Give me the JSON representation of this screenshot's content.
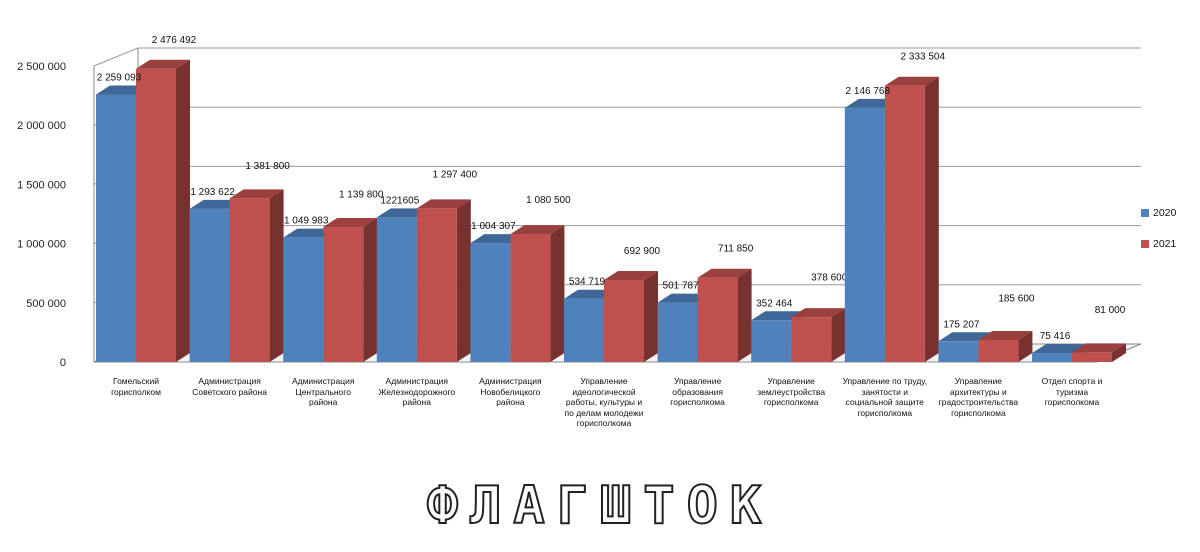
{
  "chart_data": {
    "type": "bar",
    "style": "3d-clustered-column",
    "ylim": [
      0,
      2500000
    ],
    "yticks": [
      {
        "value": 0,
        "label": "0"
      },
      {
        "value": 500000,
        "label": "500 000"
      },
      {
        "value": 1000000,
        "label": "1 000 000"
      },
      {
        "value": 1500000,
        "label": "1 500 000"
      },
      {
        "value": 2000000,
        "label": "2 000 000"
      },
      {
        "value": 2500000,
        "label": "2 500 000"
      }
    ],
    "grid": true,
    "legend_position": "right",
    "categories": [
      "Гомельский горисполком",
      "Администрация Советского района",
      "Администрация Центрального района",
      "Администрация Железнодорожного района",
      "Администрация Новобелицкого района",
      "Управление идеологической работы, культуры и по делам молодежи горисполкома",
      "Управление образования горисполкома",
      "Управление землеустройства горисполкома",
      "Управление по труду, занятости и социальной защите горисполкома",
      "Управление архитектуры и градостроительства горисполкома",
      "Отдел спорта и туризма горисполкома"
    ],
    "series": [
      {
        "name": "2020",
        "color": "#4f81bd",
        "values": [
          2259093,
          1293622,
          1049983,
          1221605,
          1004307,
          534719,
          501787,
          352464,
          2146768,
          175207,
          75416
        ],
        "labels": [
          "2 259 093",
          "1 293 622",
          "1 049 983",
          "1221605",
          "1 004 307",
          "534 719",
          "501 787",
          "352 464",
          "2 146 768",
          "175 207",
          "75 416"
        ]
      },
      {
        "name": "2021",
        "color": "#c0504d",
        "values": [
          2476492,
          1381800,
          1139800,
          1297400,
          1080500,
          692900,
          711850,
          378600,
          2333504,
          185600,
          81000
        ],
        "labels": [
          "2 476 492",
          "1 381 800",
          "1 139 800",
          "1 297 400",
          "1 080 500",
          "692 900",
          "711 850",
          "378 600",
          "2 333 504",
          "185 600",
          "81 000"
        ]
      }
    ]
  },
  "watermark": {
    "text": "ФЛАГШТОК"
  }
}
